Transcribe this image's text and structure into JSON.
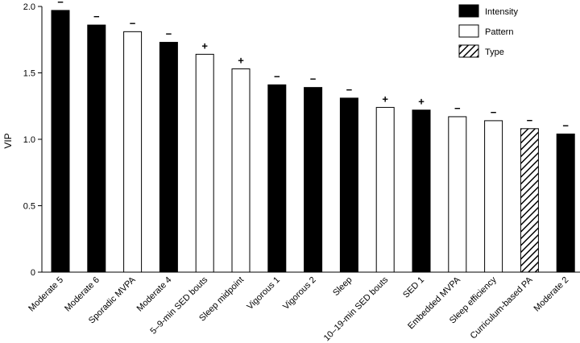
{
  "chart_data": {
    "type": "bar",
    "ylabel": "VIP",
    "ylim": [
      0,
      2.0
    ],
    "yticks": [
      "0",
      "0.5",
      "1.0",
      "1.5",
      "2.0"
    ],
    "yticks_values": [
      0,
      0.5,
      1.0,
      1.5,
      2.0
    ],
    "grid": false,
    "legend_position": "top-right",
    "legend": [
      {
        "name": "Intensity",
        "fill": "solid-black"
      },
      {
        "name": "Pattern",
        "fill": "white"
      },
      {
        "name": "Type",
        "fill": "hatched"
      }
    ],
    "categories": [
      "Moderate 5",
      "Moderate 6",
      "Sporadic MVPA",
      "Moderate 4",
      "5–9-min SED bouts",
      "Sleep midpoint",
      "Vigorous 1",
      "Vigorous 2",
      "Sleep",
      "10–19-min SED bouts",
      "SED 1",
      "Embedded MVPA",
      "Sleep efficiency",
      "Curriculum-based PA",
      "Moderate 2"
    ],
    "values": [
      1.97,
      1.86,
      1.81,
      1.73,
      1.64,
      1.53,
      1.41,
      1.39,
      1.31,
      1.24,
      1.22,
      1.17,
      1.14,
      1.08,
      1.04
    ],
    "groups": [
      "Intensity",
      "Intensity",
      "Pattern",
      "Intensity",
      "Pattern",
      "Pattern",
      "Intensity",
      "Intensity",
      "Intensity",
      "Pattern",
      "Intensity",
      "Pattern",
      "Pattern",
      "Type",
      "Intensity"
    ],
    "signs": [
      "−",
      "−",
      "−",
      "−",
      "+",
      "+",
      "−",
      "−",
      "−",
      "+",
      "+",
      "−",
      "−",
      "−",
      "−"
    ]
  },
  "colors": {
    "bar_fill_intensity": "#000000",
    "bar_fill_pattern": "#ffffff",
    "outline": "#000000"
  }
}
